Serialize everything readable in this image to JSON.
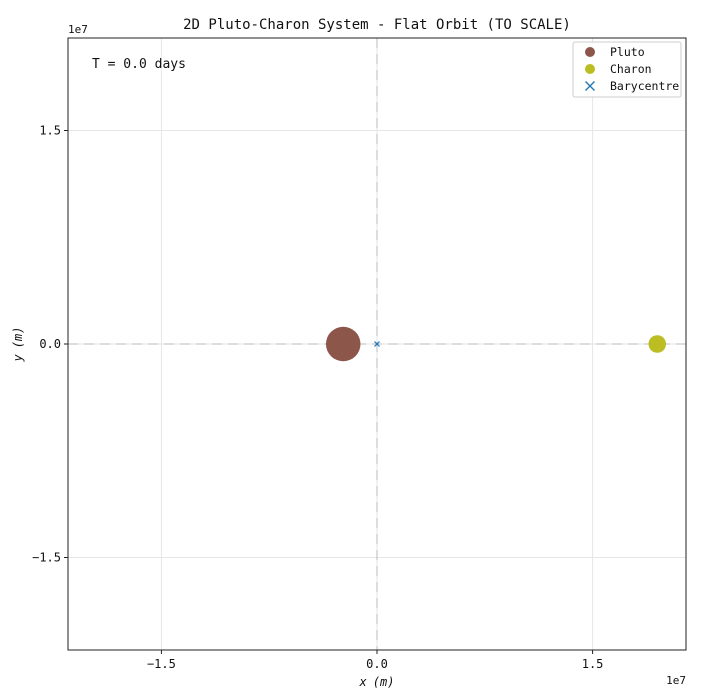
{
  "chart_data": {
    "type": "scatter",
    "title": "2D Pluto-Charon System - Flat Orbit (TO SCALE)",
    "xlabel": "x (m)",
    "ylabel": "y (m)",
    "xlabel_parts": [
      "x",
      "(m)"
    ],
    "ylabel_parts": [
      "y",
      "(m)"
    ],
    "x_offset_label": "1e7",
    "y_offset_label": "1e7",
    "xlim": [
      -2.15,
      2.15
    ],
    "ylim": [
      -2.15,
      2.15
    ],
    "x_ticks": [
      {
        "value": -1.5,
        "label": "−1.5"
      },
      {
        "value": 0.0,
        "label": "0.0"
      },
      {
        "value": 1.5,
        "label": "1.5"
      }
    ],
    "y_ticks": [
      {
        "value": -1.5,
        "label": "−1.5"
      },
      {
        "value": 0.0,
        "label": "0.0"
      },
      {
        "value": 1.5,
        "label": "1.5"
      }
    ],
    "grid": true,
    "legend_position": "top-right",
    "annotation": "T = 0.0 days",
    "series": [
      {
        "name": "Pluto",
        "marker": "circle",
        "color": "#8c564b",
        "x": -0.235,
        "y": 0.0,
        "radius": 0.12
      },
      {
        "name": "Charon",
        "marker": "circle",
        "color": "#bcbd22",
        "x": 1.95,
        "y": 0.0,
        "radius": 0.061
      },
      {
        "name": "Barycentre",
        "marker": "x",
        "color": "#1f77b4",
        "x": 0.0,
        "y": 0.0
      }
    ]
  }
}
